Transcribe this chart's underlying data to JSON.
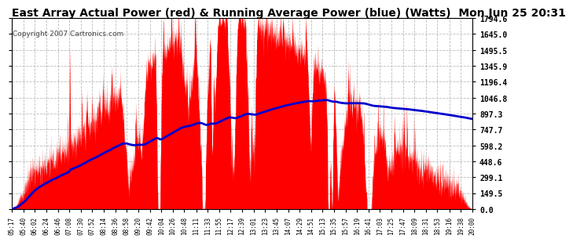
{
  "title": "East Array Actual Power (red) & Running Average Power (blue) (Watts)  Mon Jun 25 20:31",
  "copyright": "Copyright 2007 Cartronics.com",
  "ylabel_right": [
    "0.0",
    "149.5",
    "299.1",
    "448.6",
    "598.2",
    "747.7",
    "897.3",
    "1046.8",
    "1196.4",
    "1345.9",
    "1495.5",
    "1645.0",
    "1794.6"
  ],
  "ymax": 1794.6,
  "ymin": 0.0,
  "yticks": [
    0.0,
    149.5,
    299.1,
    448.6,
    598.2,
    747.7,
    897.3,
    1046.8,
    1196.4,
    1345.9,
    1495.5,
    1645.0,
    1794.6
  ],
  "background_color": "#ffffff",
  "plot_bg_color": "#ffffff",
  "grid_color": "#bbbbbb",
  "fill_color": "#ff0000",
  "avg_color": "#0000cc",
  "title_fontsize": 10,
  "copyright_fontsize": 6.5,
  "time_labels": [
    "05:17",
    "05:40",
    "06:02",
    "06:24",
    "06:46",
    "07:08",
    "07:30",
    "07:52",
    "08:14",
    "08:36",
    "08:58",
    "09:20",
    "09:42",
    "10:04",
    "10:26",
    "10:48",
    "11:11",
    "11:33",
    "11:55",
    "12:17",
    "12:39",
    "13:01",
    "13:23",
    "13:45",
    "14:07",
    "14:29",
    "14:51",
    "15:13",
    "15:35",
    "15:57",
    "16:19",
    "16:41",
    "17:03",
    "17:25",
    "17:47",
    "18:09",
    "18:31",
    "18:53",
    "19:16",
    "19:38",
    "20:00"
  ]
}
